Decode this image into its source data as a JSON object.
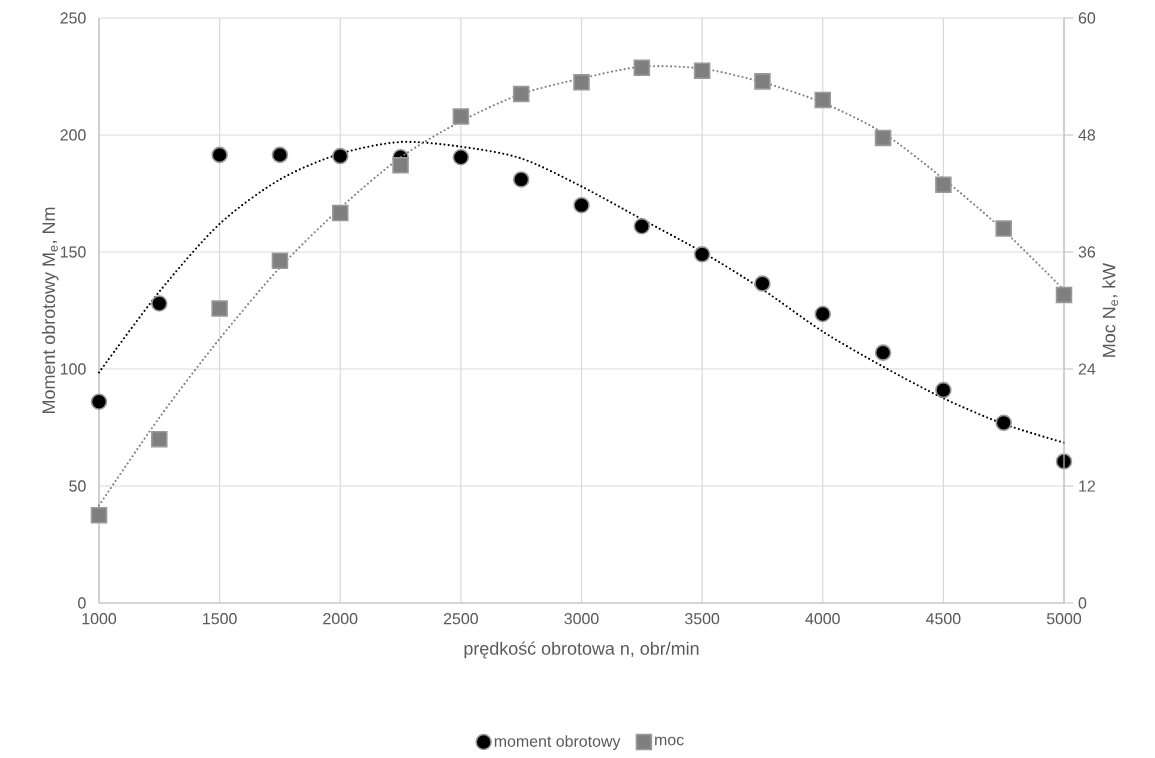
{
  "chart_data": {
    "type": "scatter",
    "xlabel": "prędkość obrotowa n, obr/min",
    "ylabel": "Moment obrotowy M$_{e}$, Nm",
    "y2label": "Moc N$_{e}$, kW",
    "x": [
      1000,
      1250,
      1500,
      1750,
      2000,
      2250,
      2500,
      2750,
      3000,
      3250,
      3500,
      3750,
      4000,
      4250,
      4500,
      4750,
      5000
    ],
    "series": [
      {
        "type": "line",
        "color": "#000000",
        "line_style": "dotted",
        "marker": "none",
        "values": [
          98.5,
          133,
          162,
          181,
          192,
          197,
          195,
          190,
          178,
          164,
          150,
          134,
          116,
          101,
          87.5,
          76.5,
          68.5
        ]
      },
      {
        "type": "line",
        "axis": "y2",
        "color": "#7f7f7f",
        "line_style": "dotted",
        "marker": "none",
        "values": [
          10,
          19,
          27.1,
          34.4,
          40.5,
          45.7,
          49.4,
          52.2,
          53.8,
          55,
          54.8,
          53.4,
          51.3,
          48.2,
          43.5,
          38.2,
          32.1
        ]
      },
      {
        "name": "moment obrotowy",
        "marker": "circle",
        "color": "#000000",
        "values": [
          86,
          128,
          191.5,
          191.5,
          191,
          190.5,
          190.5,
          181,
          170,
          161,
          149,
          136.5,
          123.5,
          107,
          91,
          77,
          60.5
        ]
      },
      {
        "name": "moc",
        "axis": "y2",
        "marker": "square",
        "color": "#7f7f7f",
        "values": [
          9,
          16.8,
          30.2,
          35.1,
          40,
          44.9,
          49.9,
          52.2,
          53.4,
          54.9,
          54.6,
          53.5,
          51.6,
          47.7,
          42.9,
          38.4,
          31.6
        ]
      }
    ],
    "xlim": [
      1000,
      5000
    ],
    "xticks": [
      1000,
      1500,
      2000,
      2500,
      3000,
      3500,
      4000,
      4500,
      5000
    ],
    "ylim": [
      0,
      250
    ],
    "yticks": [
      0,
      50,
      100,
      150,
      200,
      250
    ],
    "y2lim": [
      0,
      60
    ],
    "y2ticks": [
      0,
      12,
      24,
      36,
      48,
      60
    ],
    "grid": true,
    "legend": "bottom"
  }
}
